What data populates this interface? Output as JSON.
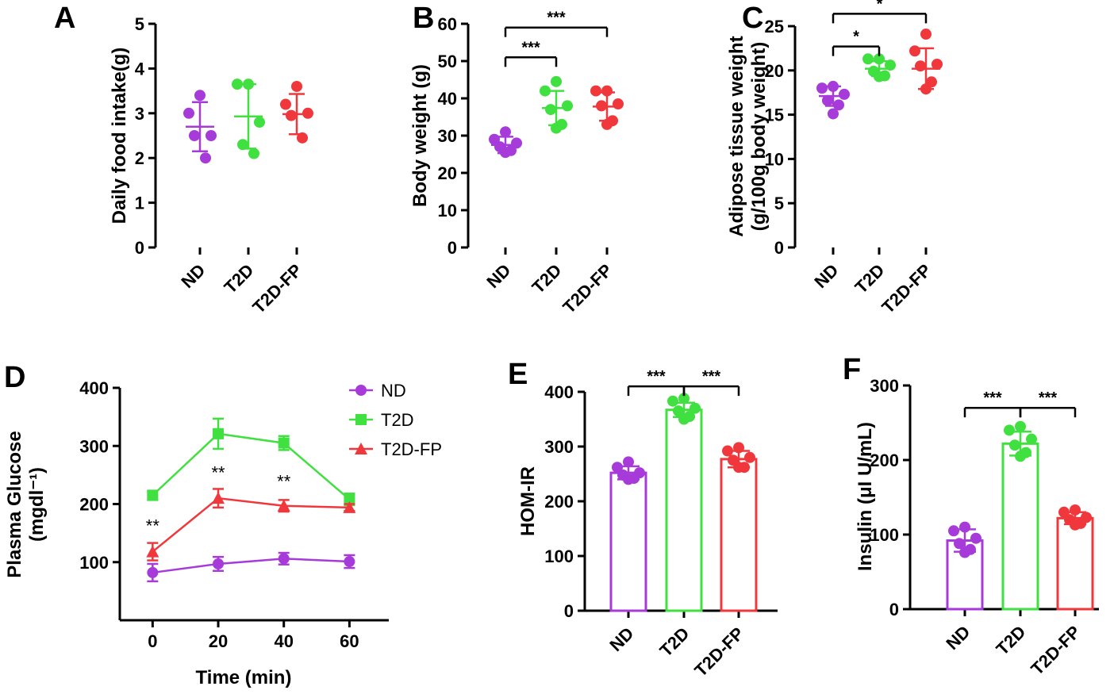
{
  "colors": {
    "ND": "#A73BD9",
    "T2D": "#3FE03F",
    "T2D-FP": "#F0383C"
  },
  "chart_data": [
    {
      "id": "A",
      "type": "scatter",
      "panel_label": "A",
      "ylabel": "Daily food intake(g)",
      "ylim": [
        0,
        5
      ],
      "yticks": [
        "0",
        "1",
        "2",
        "3",
        "4",
        "5"
      ],
      "categories": [
        "ND",
        "T2D",
        "T2D-FP"
      ],
      "groups": [
        {
          "name": "ND",
          "points": [
            3.4,
            3.0,
            2.5,
            2.5,
            2.0
          ],
          "mean": 2.7,
          "sd": 0.55
        },
        {
          "name": "T2D",
          "points": [
            3.65,
            3.65,
            2.8,
            2.3,
            2.1
          ],
          "mean": 2.93,
          "sd": 0.72
        },
        {
          "name": "T2D-FP",
          "points": [
            3.6,
            3.2,
            3.0,
            2.95,
            2.45
          ],
          "mean": 2.98,
          "sd": 0.45
        }
      ],
      "significance": []
    },
    {
      "id": "B",
      "type": "scatter",
      "panel_label": "B",
      "ylabel": "Body weight (g)",
      "ylim": [
        0,
        60
      ],
      "yticks": [
        "0",
        "10",
        "20",
        "30",
        "40",
        "50",
        "60"
      ],
      "categories": [
        "ND",
        "T2D",
        "T2D-FP"
      ],
      "groups": [
        {
          "name": "ND",
          "points": [
            31,
            29,
            28,
            27,
            26,
            25.5
          ],
          "mean": 27.5,
          "sd": 2.2
        },
        {
          "name": "T2D",
          "points": [
            44.5,
            42,
            38,
            37,
            33,
            32
          ],
          "mean": 37.4,
          "sd": 4.6
        },
        {
          "name": "T2D-FP",
          "points": [
            42,
            42,
            38.5,
            38,
            34,
            33
          ],
          "mean": 37.8,
          "sd": 3.8
        }
      ],
      "significance": [
        {
          "from": "ND",
          "to": "T2D",
          "label": "***",
          "y": 51
        },
        {
          "from": "ND",
          "to": "T2D-FP",
          "label": "***",
          "y": 59
        }
      ]
    },
    {
      "id": "C",
      "type": "scatter",
      "panel_label": "C",
      "ylabel": [
        "Adipose tissue weight",
        "(g/100g body  weight)"
      ],
      "ylim": [
        0,
        25
      ],
      "yticks": [
        "0",
        "5",
        "10",
        "15",
        "20",
        "25"
      ],
      "categories": [
        "ND",
        "T2D",
        "T2D-FP"
      ],
      "groups": [
        {
          "name": "ND",
          "points": [
            18.2,
            18.0,
            17.3,
            16.6,
            16.1,
            15.1
          ],
          "mean": 17.1,
          "sd": 1.1
        },
        {
          "name": "T2D",
          "points": [
            21.3,
            21.3,
            20.6,
            19.9,
            19.4,
            19.3
          ],
          "mean": 20.2,
          "sd": 0.85
        },
        {
          "name": "T2D-FP",
          "points": [
            24.1,
            22.2,
            20.7,
            20.5,
            18.7,
            17.9
          ],
          "mean": 20.2,
          "sd": 2.3
        }
      ],
      "significance": [
        {
          "from": "ND",
          "to": "T2D",
          "label": "*",
          "y": 22.7
        },
        {
          "from": "ND",
          "to": "T2D-FP",
          "label": "*",
          "y": 26.4
        }
      ]
    },
    {
      "id": "D",
      "type": "line",
      "panel_label": "D",
      "ylabel": [
        "Plasma Glucose",
        "(mgdl⁻¹)"
      ],
      "xlabel": "Time (min)",
      "ylim": [
        0,
        400
      ],
      "xlim": [
        -10,
        72
      ],
      "yticks": [
        "100",
        "200",
        "300",
        "400"
      ],
      "xticks": [
        "0",
        "20",
        "40",
        "60"
      ],
      "x": [
        0,
        20,
        40,
        60
      ],
      "series": [
        {
          "name": "ND",
          "marker": "circle",
          "values": [
            82,
            97,
            106,
            101
          ],
          "err": [
            15,
            12,
            10,
            11
          ]
        },
        {
          "name": "T2D",
          "marker": "square",
          "values": [
            215,
            321,
            305,
            208
          ],
          "err": [
            8,
            26,
            12,
            10
          ]
        },
        {
          "name": "T2D-FP",
          "marker": "triangle",
          "values": [
            118,
            210,
            197,
            194
          ],
          "err": [
            15,
            16,
            10,
            6
          ]
        }
      ],
      "annotations": [
        {
          "x": 0,
          "y": 152,
          "text": "**"
        },
        {
          "x": 20,
          "y": 244,
          "text": "**"
        },
        {
          "x": 40,
          "y": 229,
          "text": "**"
        }
      ],
      "legend": "top-right"
    },
    {
      "id": "E",
      "type": "bar",
      "panel_label": "E",
      "ylabel": "HOM-IR",
      "ylim": [
        0,
        400
      ],
      "yticks": [
        "0",
        "100",
        "200",
        "300",
        "400"
      ],
      "categories": [
        "ND",
        "T2D",
        "T2D-FP"
      ],
      "groups": [
        {
          "name": "ND",
          "mean": 252,
          "sd": 12,
          "points": [
            272,
            262,
            252,
            248,
            242,
            240
          ]
        },
        {
          "name": "T2D",
          "mean": 367,
          "sd": 13,
          "points": [
            388,
            383,
            370,
            365,
            355,
            350
          ]
        },
        {
          "name": "T2D-FP",
          "mean": 277,
          "sd": 15,
          "points": [
            298,
            292,
            280,
            275,
            262,
            262
          ]
        }
      ],
      "significance": [
        {
          "from": "ND",
          "to": "T2D",
          "label": "***",
          "y": 410
        },
        {
          "from": "T2D",
          "to": "T2D-FP",
          "label": "***",
          "y": 410
        }
      ]
    },
    {
      "id": "F",
      "type": "bar",
      "panel_label": "F",
      "ylabel": "Insulin (μI U/mL)",
      "ylim": [
        0,
        300
      ],
      "yticks": [
        "0",
        "100",
        "200",
        "300"
      ],
      "categories": [
        "ND",
        "T2D",
        "T2D-FP"
      ],
      "groups": [
        {
          "name": "ND",
          "mean": 92,
          "sd": 15,
          "points": [
            110,
            105,
            95,
            88,
            80,
            76
          ]
        },
        {
          "name": "T2D",
          "mean": 222,
          "sd": 16,
          "points": [
            245,
            240,
            228,
            220,
            210,
            205
          ]
        },
        {
          "name": "T2D-FP",
          "mean": 122,
          "sd": 8,
          "points": [
            133,
            130,
            123,
            120,
            115,
            113
          ]
        }
      ],
      "significance": [
        {
          "from": "ND",
          "to": "T2D",
          "label": "***",
          "y": 270
        },
        {
          "from": "T2D",
          "to": "T2D-FP",
          "label": "***",
          "y": 270
        }
      ]
    }
  ]
}
